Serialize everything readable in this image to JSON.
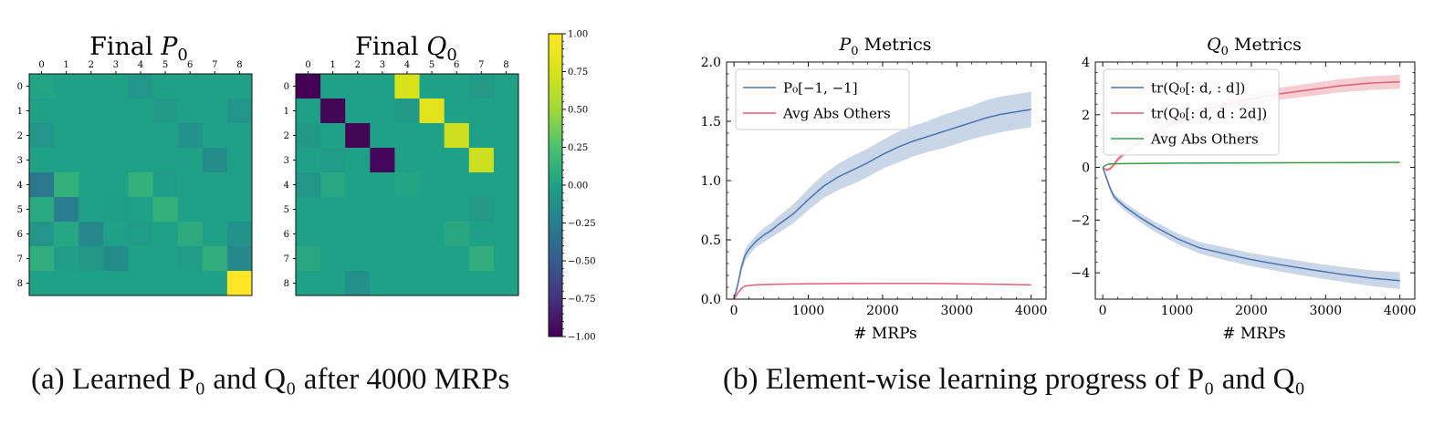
{
  "chart_data": [
    {
      "type": "heatmap",
      "title_prefix": "Final",
      "title_symbol": "P",
      "title_sub": "0",
      "x_ticks": [
        "0",
        "1",
        "2",
        "3",
        "4",
        "5",
        "6",
        "7",
        "8"
      ],
      "y_ticks": [
        "0",
        "1",
        "2",
        "3",
        "4",
        "5",
        "6",
        "7",
        "8"
      ],
      "values": [
        [
          0.02,
          0.0,
          0.0,
          0.0,
          -0.08,
          0.0,
          0.0,
          0.0,
          0.0
        ],
        [
          0.0,
          0.0,
          0.0,
          0.0,
          0.0,
          -0.05,
          0.0,
          0.0,
          -0.08
        ],
        [
          -0.08,
          0.0,
          0.0,
          0.0,
          0.0,
          0.0,
          -0.1,
          0.0,
          0.0
        ],
        [
          0.0,
          0.0,
          0.0,
          0.0,
          0.0,
          0.0,
          0.0,
          -0.15,
          0.0
        ],
        [
          -0.3,
          0.12,
          0.0,
          0.0,
          0.12,
          -0.03,
          0.0,
          0.0,
          0.0
        ],
        [
          0.06,
          -0.26,
          0.0,
          -0.02,
          0.0,
          0.12,
          0.0,
          0.0,
          0.0
        ],
        [
          -0.08,
          0.04,
          -0.18,
          0.0,
          -0.03,
          0.0,
          0.08,
          0.0,
          -0.1
        ],
        [
          0.1,
          -0.04,
          -0.06,
          -0.16,
          0.0,
          0.0,
          -0.04,
          0.1,
          -0.18
        ],
        [
          0.0,
          0.0,
          0.0,
          0.0,
          0.0,
          0.0,
          0.0,
          0.0,
          1.0
        ]
      ],
      "vmin": -1.0,
      "vmax": 1.0
    },
    {
      "type": "heatmap",
      "title_prefix": "Final",
      "title_symbol": "Q",
      "title_sub": "0",
      "x_ticks": [
        "0",
        "1",
        "2",
        "3",
        "4",
        "5",
        "6",
        "7",
        "8"
      ],
      "y_ticks": [
        "0",
        "1",
        "2",
        "3",
        "4",
        "5",
        "6",
        "7",
        "8"
      ],
      "values": [
        [
          -1.0,
          0.0,
          0.0,
          0.0,
          0.75,
          0.0,
          0.0,
          -0.05,
          0.0
        ],
        [
          0.0,
          -0.98,
          0.0,
          0.0,
          -0.05,
          0.82,
          0.0,
          0.0,
          0.0
        ],
        [
          -0.06,
          0.0,
          -0.98,
          0.0,
          0.0,
          0.0,
          0.7,
          0.0,
          0.0
        ],
        [
          0.0,
          -0.04,
          0.0,
          -0.97,
          0.0,
          0.0,
          0.0,
          0.7,
          0.0
        ],
        [
          -0.08,
          0.05,
          0.0,
          0.0,
          0.02,
          0.0,
          0.0,
          0.0,
          0.0
        ],
        [
          0.0,
          0.0,
          0.0,
          0.0,
          0.0,
          0.0,
          0.0,
          -0.05,
          0.0
        ],
        [
          0.0,
          0.0,
          0.0,
          0.0,
          0.0,
          0.0,
          0.05,
          0.0,
          0.0
        ],
        [
          0.05,
          0.0,
          0.0,
          0.0,
          0.0,
          0.0,
          0.0,
          0.1,
          0.0
        ],
        [
          0.0,
          0.0,
          -0.12,
          0.0,
          0.0,
          0.0,
          0.0,
          0.0,
          0.0
        ]
      ],
      "vmin": -1.0,
      "vmax": 1.0
    },
    {
      "type": "colorbar",
      "colormap": "viridis",
      "ticks": [
        "1.00",
        "0.75",
        "0.50",
        "0.25",
        "0.00",
        "−0.25",
        "−0.50",
        "−0.75",
        "−1.00"
      ],
      "tick_values": [
        1.0,
        0.75,
        0.5,
        0.25,
        0.0,
        -0.25,
        -0.5,
        -0.75,
        -1.0
      ],
      "range": [
        -1.0,
        1.0
      ]
    },
    {
      "type": "line",
      "title_symbol": "P",
      "title_sub": "0",
      "title_suffix": "Metrics",
      "xlabel": "# MRPs",
      "xlim": [
        -100,
        4200
      ],
      "ylim": [
        0.0,
        2.0
      ],
      "x_ticks": [
        "0",
        "1000",
        "2000",
        "3000",
        "4000"
      ],
      "x_tick_values": [
        0,
        1000,
        2000,
        3000,
        4000
      ],
      "y_ticks": [
        "0.0",
        "0.5",
        "1.0",
        "1.5",
        "2.0"
      ],
      "y_tick_values": [
        0.0,
        0.5,
        1.0,
        1.5,
        2.0
      ],
      "legend_position": "top-left",
      "series": [
        {
          "name": "P₀[−1, −1]",
          "color": "#4c72b0",
          "band_color": "#b6c8e0",
          "x": [
            0,
            50,
            100,
            150,
            200,
            300,
            400,
            500,
            600,
            800,
            1000,
            1200,
            1400,
            1600,
            1800,
            2000,
            2200,
            2400,
            2600,
            2800,
            3000,
            3200,
            3400,
            3600,
            3800,
            4000
          ],
          "y": [
            0.0,
            0.12,
            0.27,
            0.37,
            0.42,
            0.49,
            0.54,
            0.58,
            0.63,
            0.72,
            0.84,
            0.95,
            1.03,
            1.09,
            1.15,
            1.22,
            1.28,
            1.33,
            1.37,
            1.41,
            1.45,
            1.49,
            1.53,
            1.56,
            1.58,
            1.6
          ],
          "band_halfwidth": [
            0.0,
            0.03,
            0.04,
            0.05,
            0.05,
            0.05,
            0.06,
            0.06,
            0.07,
            0.08,
            0.09,
            0.1,
            0.11,
            0.12,
            0.12,
            0.12,
            0.13,
            0.13,
            0.13,
            0.14,
            0.14,
            0.14,
            0.15,
            0.15,
            0.15,
            0.15
          ]
        },
        {
          "name": "Avg Abs Others",
          "color": "#e06070",
          "x": [
            0,
            50,
            100,
            150,
            200,
            300,
            500,
            1000,
            1500,
            2000,
            2500,
            3000,
            3500,
            4000
          ],
          "y": [
            0.0,
            0.05,
            0.09,
            0.11,
            0.115,
            0.12,
            0.125,
            0.13,
            0.132,
            0.133,
            0.133,
            0.13,
            0.126,
            0.12
          ]
        }
      ]
    },
    {
      "type": "line",
      "title_symbol": "Q",
      "title_sub": "0",
      "title_suffix": "Metrics",
      "xlabel": "# MRPs",
      "xlim": [
        -100,
        4200
      ],
      "ylim": [
        -5.0,
        4.0
      ],
      "x_ticks": [
        "0",
        "1000",
        "2000",
        "3000",
        "4000"
      ],
      "x_tick_values": [
        0,
        1000,
        2000,
        3000,
        4000
      ],
      "y_ticks": [
        "−4",
        "−2",
        "0",
        "2",
        "4"
      ],
      "y_tick_values": [
        -4,
        -2,
        0,
        2,
        4
      ],
      "legend_position": "top-left",
      "series": [
        {
          "name": "tr(Q₀[: d, : d])",
          "color": "#4c72b0",
          "band_color": "#b6c8e0",
          "x": [
            0,
            50,
            100,
            150,
            200,
            300,
            400,
            500,
            700,
            1000,
            1300,
            1600,
            2000,
            2400,
            2800,
            3200,
            3600,
            4000
          ],
          "y": [
            0.0,
            -0.4,
            -0.8,
            -1.1,
            -1.25,
            -1.5,
            -1.7,
            -1.9,
            -2.25,
            -2.7,
            -3.05,
            -3.25,
            -3.5,
            -3.7,
            -3.88,
            -4.05,
            -4.2,
            -4.3
          ],
          "band_halfwidth": [
            0.0,
            0.08,
            0.1,
            0.12,
            0.13,
            0.15,
            0.16,
            0.17,
            0.19,
            0.2,
            0.22,
            0.24,
            0.25,
            0.26,
            0.27,
            0.28,
            0.3,
            0.32
          ]
        },
        {
          "name": "tr(Q₀[: d, d : 2d])",
          "color": "#e06070",
          "band_color": "#f2bcc4",
          "x": [
            0,
            50,
            100,
            150,
            200,
            300,
            400,
            500,
            700,
            1000,
            1300,
            1600,
            2000,
            2400,
            2800,
            3200,
            3600,
            4000
          ],
          "y": [
            0.0,
            -0.1,
            -0.05,
            0.1,
            0.3,
            0.55,
            0.8,
            1.0,
            1.35,
            1.75,
            2.1,
            2.35,
            2.6,
            2.8,
            2.95,
            3.1,
            3.2,
            3.25
          ],
          "band_halfwidth": [
            0.0,
            0.05,
            0.07,
            0.08,
            0.09,
            0.1,
            0.12,
            0.13,
            0.15,
            0.17,
            0.19,
            0.2,
            0.22,
            0.23,
            0.24,
            0.25,
            0.26,
            0.27
          ]
        },
        {
          "name": "Avg Abs Others",
          "color": "#3a9a4a",
          "x": [
            0,
            50,
            100,
            200,
            500,
            1000,
            2000,
            3000,
            4000
          ],
          "y": [
            0.0,
            0.1,
            0.13,
            0.14,
            0.15,
            0.16,
            0.17,
            0.18,
            0.19
          ]
        }
      ]
    }
  ],
  "captions": {
    "a": "(a) Learned P₀ and Q₀ after 4000 MRPs",
    "b": "(b) Element-wise learning progress of P₀ and Q₀"
  }
}
